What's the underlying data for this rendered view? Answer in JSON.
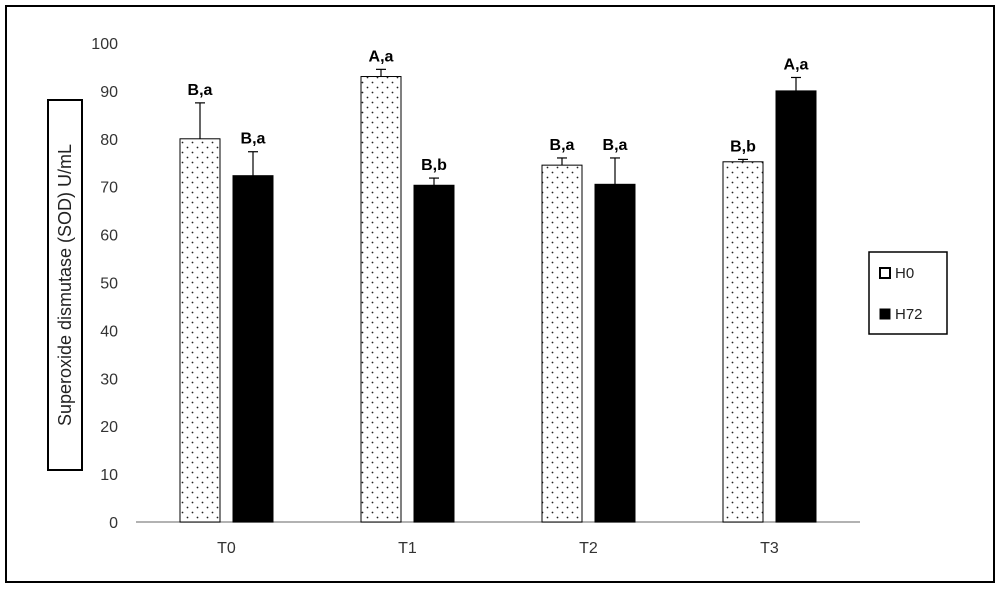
{
  "chart_data": {
    "type": "bar",
    "title": "",
    "xlabel": "",
    "ylabel": "Superoxide dismutase (SOD)  U/mL",
    "ylim": [
      0,
      100
    ],
    "yticks": [
      0,
      10,
      20,
      30,
      40,
      50,
      60,
      70,
      80,
      90,
      100
    ],
    "grid": false,
    "legend_position": "right",
    "categories": [
      "T0",
      "T1",
      "T2",
      "T3"
    ],
    "series": [
      {
        "name": "H0",
        "pattern": "dotted",
        "color": "#ffffff",
        "values": [
          80,
          93,
          74.5,
          75.2
        ],
        "errors": [
          7.5,
          1.5,
          1.5,
          0.5
        ],
        "labels": [
          "B,a",
          "A,a",
          "B,a",
          "B,b"
        ]
      },
      {
        "name": "H72",
        "pattern": "solid",
        "color": "#000000",
        "values": [
          72.3,
          70.3,
          70.5,
          90
        ],
        "errors": [
          5,
          1.5,
          5.5,
          2.8
        ],
        "labels": [
          "B,a",
          "B,b",
          "B,a",
          "A,a"
        ]
      }
    ]
  }
}
